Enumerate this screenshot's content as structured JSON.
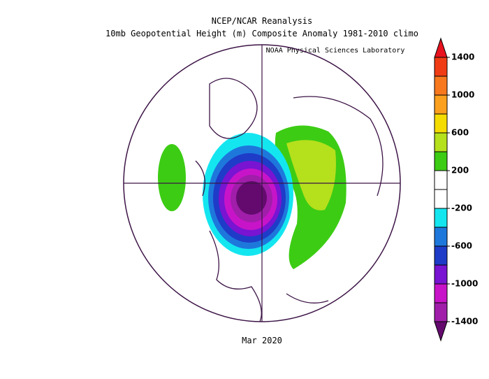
{
  "header": {
    "title": "NCEP/NCAR Reanalysis",
    "subtitle": "10mb Geopotential Height (m) Composite Anomaly 1981-2010 climo",
    "credit": "NOAA Physical Sciences Laboratory"
  },
  "footer": {
    "period": "Mar 2020"
  },
  "colorbar": {
    "labels": [
      1400,
      1000,
      600,
      200,
      -200,
      -600,
      -1000,
      -1400
    ],
    "colors": [
      "#e8121e",
      "#f03c14",
      "#f8781e",
      "#fba01e",
      "#f5dc00",
      "#b5e01c",
      "#3ccc14",
      "#ffffff",
      "#ffffff",
      "#14e6f0",
      "#1e78dc",
      "#1e3cc8",
      "#7814d2",
      "#c814c8",
      "#a01eaa",
      "#640a6e"
    ]
  }
}
